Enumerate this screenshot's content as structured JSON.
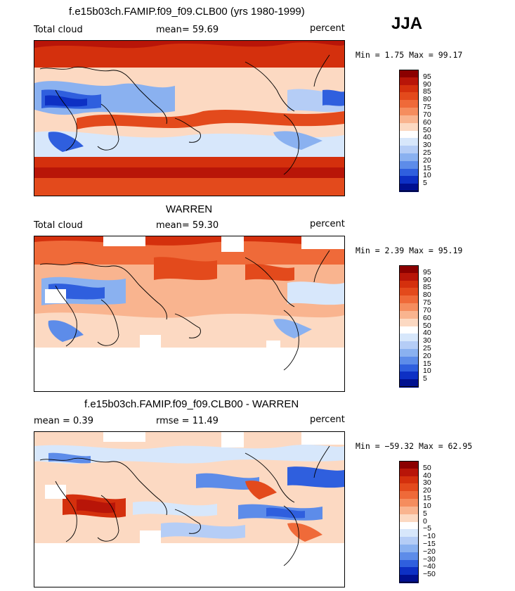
{
  "season": "JJA",
  "panels": [
    {
      "id": "model",
      "title": "f.e15b03ch.FAMIP.f09_f09.CLB00 (yrs 1980-1999)",
      "left_label": "Total cloud",
      "center_label": "mean=  59.69",
      "right_label": "percent",
      "minmax": "Min =    1.75 Max =   99.17",
      "colorbar": {
        "labels": [
          "95",
          "90",
          "85",
          "80",
          "75",
          "70",
          "60",
          "50",
          "40",
          "30",
          "25",
          "20",
          "15",
          "10",
          "5"
        ],
        "colors": [
          "#8b0000",
          "#b81508",
          "#d4300d",
          "#e34a1c",
          "#ef6a39",
          "#f58d5e",
          "#f9b48f",
          "#fcd9c2",
          "#ffffff",
          "#d7e7fb",
          "#b5cdf6",
          "#8ab1f0",
          "#5d8ce9",
          "#2f5fde",
          "#0d30c4",
          "#001090"
        ]
      }
    },
    {
      "id": "obs",
      "title": "WARREN",
      "left_label": "Total cloud",
      "center_label": "mean=  59.30",
      "right_label": "percent",
      "minmax": "Min =    2.39 Max =   95.19",
      "colorbar": {
        "labels": [
          "95",
          "90",
          "85",
          "80",
          "75",
          "70",
          "60",
          "50",
          "40",
          "30",
          "25",
          "20",
          "15",
          "10",
          "5"
        ],
        "colors": [
          "#8b0000",
          "#b81508",
          "#d4300d",
          "#e34a1c",
          "#ef6a39",
          "#f58d5e",
          "#f9b48f",
          "#fcd9c2",
          "#ffffff",
          "#d7e7fb",
          "#b5cdf6",
          "#8ab1f0",
          "#5d8ce9",
          "#2f5fde",
          "#0d30c4",
          "#001090"
        ]
      }
    },
    {
      "id": "diff",
      "title": "f.e15b03ch.FAMIP.f09_f09.CLB00 - WARREN",
      "left_label": "mean =    0.39",
      "center_label": "rmse =   11.49",
      "right_label": "percent",
      "minmax": "Min = −59.32 Max =   62.95",
      "colorbar": {
        "labels": [
          "50",
          "40",
          "30",
          "20",
          "15",
          "10",
          "5",
          "0",
          "−5",
          "−10",
          "−15",
          "−20",
          "−30",
          "−40",
          "−50"
        ],
        "colors": [
          "#8b0000",
          "#b81508",
          "#d4300d",
          "#e34a1c",
          "#ef6a39",
          "#f58d5e",
          "#f9b48f",
          "#fcd9c2",
          "#ffffff",
          "#d7e7fb",
          "#b5cdf6",
          "#8ab1f0",
          "#5d8ce9",
          "#2f5fde",
          "#0d30c4",
          "#001090"
        ]
      }
    }
  ]
}
